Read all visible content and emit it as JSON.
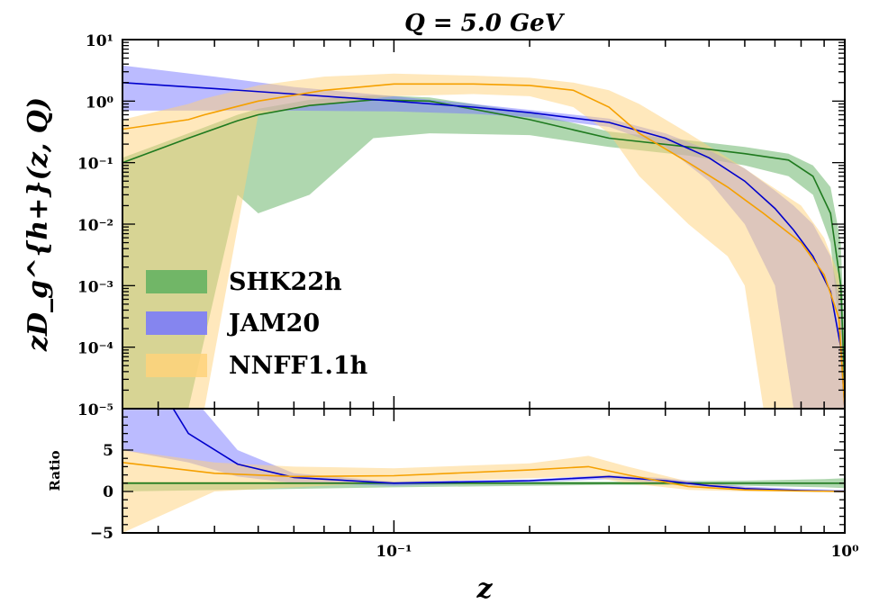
{
  "chart_data": [
    {
      "type": "area",
      "title": "Q = 5.0 GeV",
      "xlabel": "",
      "ylabel": "zD_g^{h+}(z, Q)",
      "x_scale": "log",
      "y_scale": "log",
      "xlim": [
        0.025,
        1.0
      ],
      "ylim": [
        1e-05,
        10
      ],
      "y_ticks": [
        {
          "value": 10,
          "label": "10¹"
        },
        {
          "value": 1,
          "label": "10⁰"
        },
        {
          "value": 0.1,
          "label": "10⁻¹"
        },
        {
          "value": 0.01,
          "label": "10⁻²"
        },
        {
          "value": 0.001,
          "label": "10⁻³"
        },
        {
          "value": 0.0001,
          "label": "10⁻⁴"
        },
        {
          "value": 1e-05,
          "label": "10⁻⁵"
        }
      ],
      "legend_position": "center-left",
      "series": [
        {
          "name": "SHK22h",
          "color": "#1f7a1f",
          "band_color": "#5fb05f",
          "points": [
            {
              "z": 0.025,
              "central": 0.1,
              "upper": 0.12,
              "lower": 1e-05
            },
            {
              "z": 0.035,
              "central": 0.25,
              "upper": 0.3,
              "lower": 1e-05
            },
            {
              "z": 0.045,
              "central": 0.48,
              "upper": 0.6,
              "lower": 0.03
            },
            {
              "z": 0.05,
              "central": 0.6,
              "upper": 0.75,
              "lower": 0.015
            },
            {
              "z": 0.065,
              "central": 0.85,
              "upper": 1.05,
              "lower": 0.03
            },
            {
              "z": 0.09,
              "central": 1.05,
              "upper": 1.25,
              "lower": 0.25
            },
            {
              "z": 0.12,
              "central": 1.0,
              "upper": 1.15,
              "lower": 0.3
            },
            {
              "z": 0.2,
              "central": 0.5,
              "upper": 0.65,
              "lower": 0.28
            },
            {
              "z": 0.3,
              "central": 0.25,
              "upper": 0.32,
              "lower": 0.18
            },
            {
              "z": 0.45,
              "central": 0.18,
              "upper": 0.23,
              "lower": 0.13
            },
            {
              "z": 0.6,
              "central": 0.14,
              "upper": 0.18,
              "lower": 0.09
            },
            {
              "z": 0.75,
              "central": 0.11,
              "upper": 0.14,
              "lower": 0.06
            },
            {
              "z": 0.85,
              "central": 0.06,
              "upper": 0.09,
              "lower": 0.03
            },
            {
              "z": 0.93,
              "central": 0.015,
              "upper": 0.04,
              "lower": 0.005
            },
            {
              "z": 0.98,
              "central": 0.001,
              "upper": 0.005,
              "lower": 0.0001
            },
            {
              "z": 1.0,
              "central": 2e-05,
              "upper": 0.0001,
              "lower": 1e-05
            }
          ]
        },
        {
          "name": "JAM20",
          "color": "#0000cc",
          "band_color": "#7777ff",
          "points": [
            {
              "z": 0.025,
              "central": 2.0,
              "upper": 3.8,
              "lower": 0.7
            },
            {
              "z": 0.04,
              "central": 1.6,
              "upper": 2.5,
              "lower": 0.7
            },
            {
              "z": 0.06,
              "central": 1.3,
              "upper": 1.7,
              "lower": 0.7
            },
            {
              "z": 0.1,
              "central": 1.0,
              "upper": 1.2,
              "lower": 0.68
            },
            {
              "z": 0.15,
              "central": 0.8,
              "upper": 0.9,
              "lower": 0.62
            },
            {
              "z": 0.2,
              "central": 0.65,
              "upper": 0.72,
              "lower": 0.55
            },
            {
              "z": 0.3,
              "central": 0.45,
              "upper": 0.52,
              "lower": 0.38
            },
            {
              "z": 0.4,
              "central": 0.25,
              "upper": 0.3,
              "lower": 0.18
            },
            {
              "z": 0.5,
              "central": 0.12,
              "upper": 0.16,
              "lower": 0.05
            },
            {
              "z": 0.6,
              "central": 0.05,
              "upper": 0.08,
              "lower": 0.01
            },
            {
              "z": 0.7,
              "central": 0.018,
              "upper": 0.035,
              "lower": 0.001
            },
            {
              "z": 0.77,
              "central": 0.008,
              "upper": 0.02,
              "lower": 1e-05
            },
            {
              "z": 0.85,
              "central": 0.003,
              "upper": 0.01,
              "lower": 1e-05
            },
            {
              "z": 0.93,
              "central": 0.0008,
              "upper": 0.003,
              "lower": 1e-05
            },
            {
              "z": 0.98,
              "central": 0.0001,
              "upper": 0.0005,
              "lower": 1e-05
            },
            {
              "z": 1.0,
              "central": 1e-05,
              "upper": 2e-05,
              "lower": 1e-05
            }
          ]
        },
        {
          "name": "NNFF1.1h",
          "color": "#f5a000",
          "band_color": "#ffd27a",
          "points": [
            {
              "z": 0.025,
              "central": 0.35,
              "upper": 0.5,
              "lower": 1e-05
            },
            {
              "z": 0.035,
              "central": 0.5,
              "upper": 0.9,
              "lower": 1e-05
            },
            {
              "z": 0.038,
              "central": 0.6,
              "upper": 1.1,
              "lower": 1e-05
            },
            {
              "z": 0.05,
              "central": 1.0,
              "upper": 1.8,
              "lower": 0.6
            },
            {
              "z": 0.07,
              "central": 1.5,
              "upper": 2.5,
              "lower": 0.9
            },
            {
              "z": 0.1,
              "central": 1.9,
              "upper": 2.8,
              "lower": 1.2
            },
            {
              "z": 0.15,
              "central": 1.9,
              "upper": 2.6,
              "lower": 1.3
            },
            {
              "z": 0.2,
              "central": 1.8,
              "upper": 2.4,
              "lower": 1.2
            },
            {
              "z": 0.25,
              "central": 1.5,
              "upper": 2.0,
              "lower": 0.8
            },
            {
              "z": 0.3,
              "central": 0.8,
              "upper": 1.5,
              "lower": 0.3
            },
            {
              "z": 0.35,
              "central": 0.3,
              "upper": 0.9,
              "lower": 0.06
            },
            {
              "z": 0.45,
              "central": 0.1,
              "upper": 0.3,
              "lower": 0.01
            },
            {
              "z": 0.55,
              "central": 0.04,
              "upper": 0.12,
              "lower": 0.003
            },
            {
              "z": 0.6,
              "central": 0.025,
              "upper": 0.08,
              "lower": 0.001
            },
            {
              "z": 0.66,
              "central": 0.015,
              "upper": 0.05,
              "lower": 1e-05
            },
            {
              "z": 0.8,
              "central": 0.005,
              "upper": 0.02,
              "lower": 1e-05
            },
            {
              "z": 0.9,
              "central": 0.0015,
              "upper": 0.006,
              "lower": 1e-05
            },
            {
              "z": 0.97,
              "central": 0.0003,
              "upper": 0.0015,
              "lower": 1e-05
            },
            {
              "z": 1.0,
              "central": 1e-05,
              "upper": 2e-05,
              "lower": 1e-05
            }
          ]
        }
      ]
    },
    {
      "type": "area",
      "title": "",
      "xlabel": "z",
      "ylabel": "Ratio",
      "x_scale": "log",
      "xlim": [
        0.025,
        1.0
      ],
      "ylim": [
        -5,
        10
      ],
      "y_ticks": [
        {
          "value": 5,
          "label": "5"
        },
        {
          "value": 0,
          "label": "0"
        },
        {
          "value": -5,
          "label": "−5"
        }
      ],
      "x_ticks": [
        {
          "value": 0.1,
          "label": "10⁻¹"
        },
        {
          "value": 1,
          "label": "10⁰"
        }
      ],
      "series": [
        {
          "name": "SHK22h",
          "color": "#1f7a1f",
          "band_color": "#5fb05f",
          "points": [
            {
              "z": 0.025,
              "central": 1.0,
              "upper": 1.2,
              "lower": 0.0
            },
            {
              "z": 0.1,
              "central": 1.0,
              "upper": 1.2,
              "lower": 0.5
            },
            {
              "z": 0.3,
              "central": 1.0,
              "upper": 1.2,
              "lower": 0.8
            },
            {
              "z": 0.6,
              "central": 1.0,
              "upper": 1.3,
              "lower": 0.7
            },
            {
              "z": 0.9,
              "central": 1.0,
              "upper": 1.5,
              "lower": 0.5
            },
            {
              "z": 1.0,
              "central": 1.0,
              "upper": 1.6,
              "lower": 0.4
            }
          ]
        },
        {
          "name": "JAM20",
          "color": "#0000cc",
          "band_color": "#7777ff",
          "points": [
            {
              "z": 0.025,
              "central": 20,
              "upper": 38,
              "lower": 5
            },
            {
              "z": 0.035,
              "central": 7,
              "upper": 12,
              "lower": 3.5
            },
            {
              "z": 0.045,
              "central": 3.3,
              "upper": 5.0,
              "lower": 1.8
            },
            {
              "z": 0.06,
              "central": 1.7,
              "upper": 2.2,
              "lower": 1.0
            },
            {
              "z": 0.1,
              "central": 1.0,
              "upper": 1.2,
              "lower": 0.7
            },
            {
              "z": 0.2,
              "central": 1.3,
              "upper": 1.45,
              "lower": 1.1
            },
            {
              "z": 0.3,
              "central": 1.8,
              "upper": 2.0,
              "lower": 1.5
            },
            {
              "z": 0.4,
              "central": 1.3,
              "upper": 1.6,
              "lower": 1.0
            },
            {
              "z": 0.5,
              "central": 0.7,
              "upper": 1.0,
              "lower": 0.4
            },
            {
              "z": 0.6,
              "central": 0.35,
              "upper": 0.6,
              "lower": 0.1
            },
            {
              "z": 0.8,
              "central": 0.1,
              "upper": 0.3,
              "lower": 0.0
            },
            {
              "z": 1.0,
              "central": 0.0,
              "upper": 0.2,
              "lower": 0.0
            }
          ]
        },
        {
          "name": "NNFF1.1h",
          "color": "#f5a000",
          "band_color": "#ffd27a",
          "points": [
            {
              "z": 0.025,
              "central": 3.5,
              "upper": 5.0,
              "lower": -5.0
            },
            {
              "z": 0.04,
              "central": 2.2,
              "upper": 3.5,
              "lower": 0.0
            },
            {
              "z": 0.06,
              "central": 1.8,
              "upper": 3.0,
              "lower": 0.5
            },
            {
              "z": 0.1,
              "central": 1.9,
              "upper": 2.8,
              "lower": 1.1
            },
            {
              "z": 0.2,
              "central": 2.6,
              "upper": 3.4,
              "lower": 1.6
            },
            {
              "z": 0.27,
              "central": 3.0,
              "upper": 4.3,
              "lower": 1.8
            },
            {
              "z": 0.33,
              "central": 2.0,
              "upper": 3.0,
              "lower": 1.0
            },
            {
              "z": 0.45,
              "central": 0.6,
              "upper": 1.2,
              "lower": 0.2
            },
            {
              "z": 0.6,
              "central": 0.2,
              "upper": 0.5,
              "lower": 0.0
            },
            {
              "z": 0.8,
              "central": 0.05,
              "upper": 0.2,
              "lower": 0.0
            },
            {
              "z": 1.0,
              "central": 0.0,
              "upper": 0.1,
              "lower": 0.0
            }
          ]
        }
      ]
    }
  ]
}
